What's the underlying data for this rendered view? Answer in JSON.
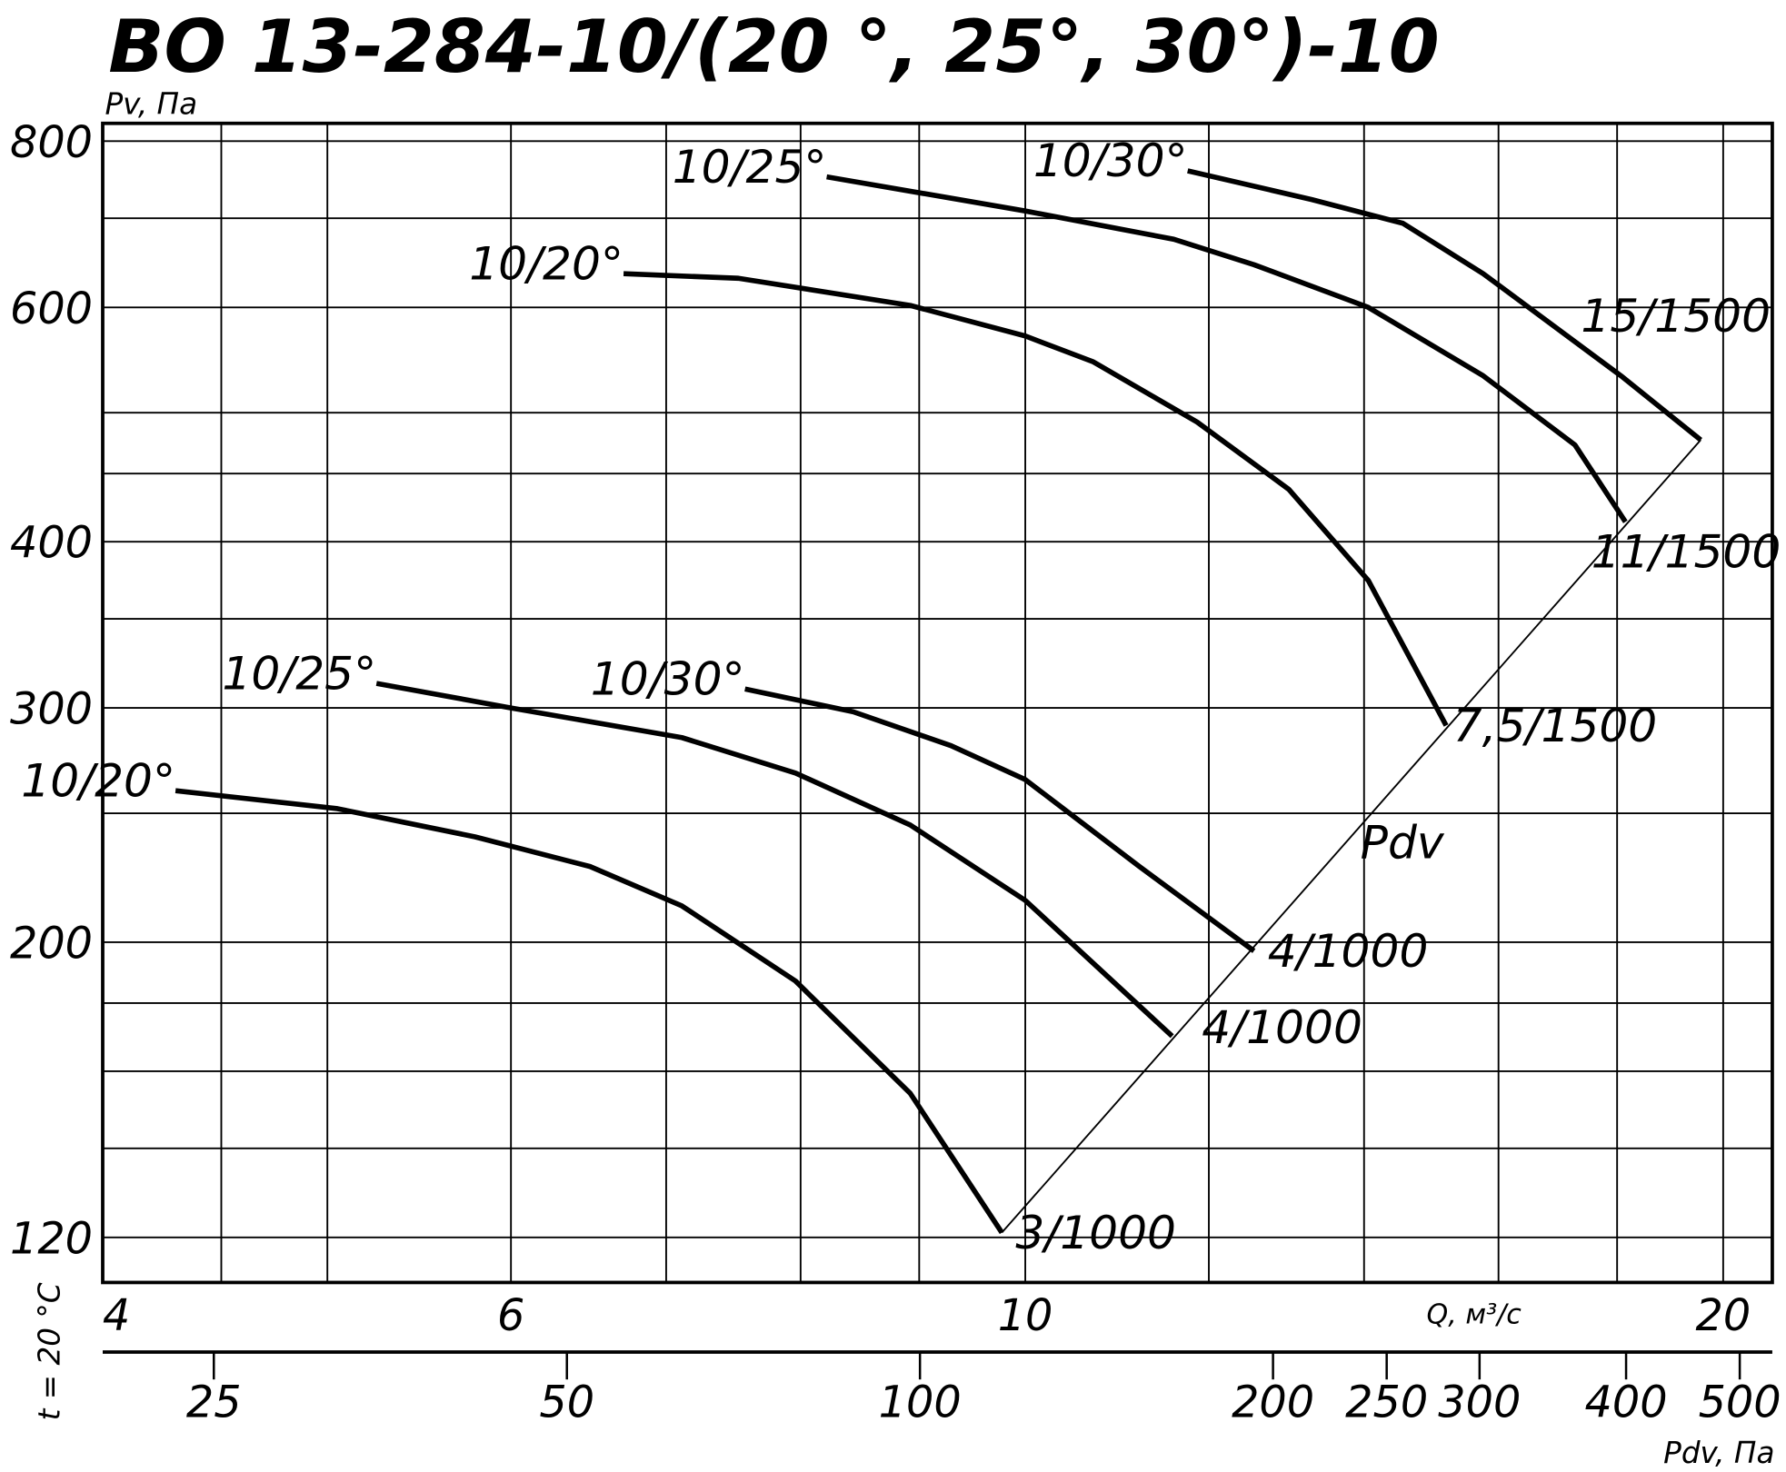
{
  "chart_data": {
    "type": "line",
    "title": "ВО 13-284-10/(20 °, 25°, 30°)-10",
    "ylabel": "Pv, Па",
    "xlabel": "Q, м³/с",
    "note": "t = 20 °C",
    "xlog": true,
    "ylog": true,
    "grid": true,
    "xlim": [
      4,
      21
    ],
    "ylim": [
      111,
      825
    ],
    "xticks": [
      4,
      6,
      10,
      20
    ],
    "xgrid_minor": [
      4.5,
      5,
      7,
      8,
      9,
      12,
      14,
      16,
      18
    ],
    "yticks": [
      120,
      200,
      300,
      400,
      600,
      800
    ],
    "ygrid_minor": [
      140,
      160,
      180,
      250,
      350,
      450,
      500,
      700
    ],
    "pdv_axis": {
      "label": "Pdv, Па",
      "lim": [
        20.1,
        533
      ],
      "ticks": [
        25,
        50,
        100,
        200,
        250,
        300,
        400,
        500
      ]
    },
    "series": [
      {
        "name": "10/20°",
        "end_label": "7,5/1500",
        "color": "#000000",
        "x": [
          6.71,
          7.52,
          8.92,
          10,
          10.7,
          11.86,
          12.99,
          14.06,
          15.19
        ],
        "values": [
          636,
          631,
          602,
          571,
          546,
          492,
          438,
          374,
          291
        ]
      },
      {
        "name": "10/25°",
        "end_label": "11/1500",
        "color": "#000000",
        "x": [
          8.21,
          10,
          11.59,
          12.55,
          14.06,
          15.76,
          17.26,
          18.15
        ],
        "values": [
          752,
          709,
          675,
          646,
          600,
          533,
          473,
          414
        ]
      },
      {
        "name": "10/30°",
        "end_label": "15/1500",
        "color": "#000000",
        "x": [
          11.75,
          13.29,
          14.55,
          15.76,
          18.07,
          19.56
        ],
        "values": [
          760,
          723,
          694,
          636,
          533,
          477
        ]
      },
      {
        "name": "10/20°",
        "end_label": "3/1000",
        "color": "#000000",
        "x": [
          4.3,
          5.05,
          5.79,
          6.49,
          7.11,
          7.96,
          8.92,
          9.77
        ],
        "values": [
          260,
          252,
          240,
          228,
          213,
          187,
          154,
          121
        ]
      },
      {
        "name": "10/25°",
        "end_label": "4/1000",
        "color": "#000000",
        "x": [
          5.25,
          6.0,
          7.11,
          7.96,
          8.92,
          10,
          11.57
        ],
        "values": [
          313,
          300,
          285,
          268,
          245,
          215,
          170
        ]
      },
      {
        "name": "10/30°",
        "end_label": "4/1000",
        "color": "#000000",
        "x": [
          7.57,
          8.43,
          9.29,
          10,
          11.2,
          12.55
        ],
        "values": [
          310,
          298,
          281,
          265,
          228,
          197
        ]
      }
    ],
    "pdv_line": {
      "name": "Pdv",
      "color": "#000000",
      "x": [
        9.77,
        19.56
      ],
      "values": [
        121,
        477
      ]
    }
  }
}
